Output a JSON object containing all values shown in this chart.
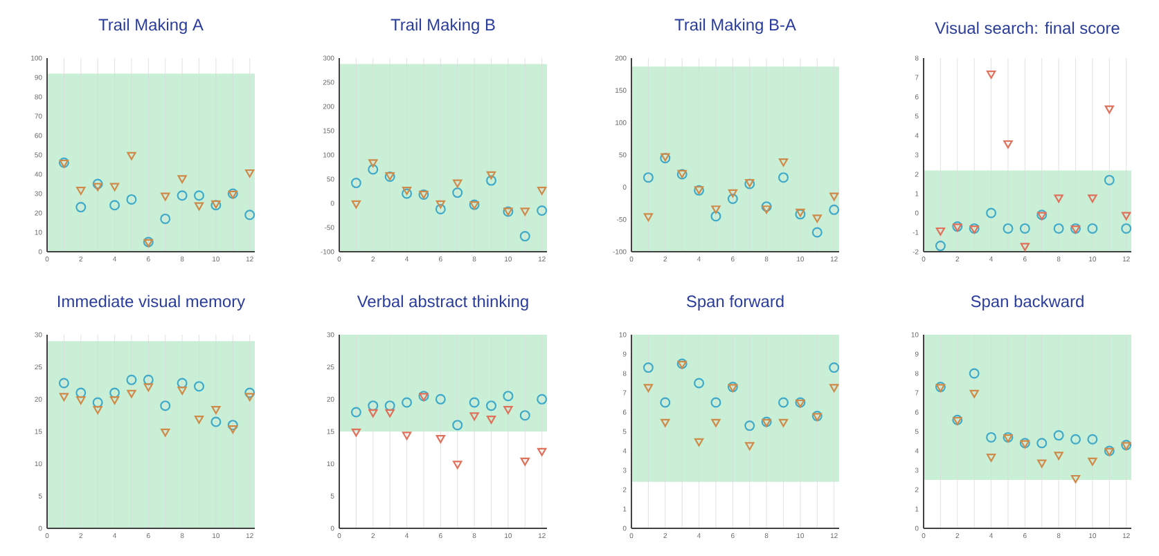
{
  "chart_data": [
    {
      "type": "scatter",
      "title": "Trail Making A",
      "xlim": [
        0,
        12.3
      ],
      "ylim": [
        0,
        100
      ],
      "grid": "x",
      "xticks": [
        0,
        {
          "value": 1,
          "label": null
        },
        2,
        {
          "value": 3,
          "label": null
        },
        4,
        {
          "value": 5,
          "label": null
        },
        6,
        {
          "value": 7,
          "label": null
        },
        8,
        {
          "value": 9,
          "label": null
        },
        10,
        {
          "value": 11,
          "label": null
        },
        12
      ],
      "yticks": [
        0,
        10,
        20,
        30,
        40,
        50,
        60,
        70,
        80,
        90,
        100
      ],
      "bands": [
        {
          "axis": "y",
          "from": 0,
          "to": 92,
          "color": "#c9f0d6"
        }
      ],
      "x": [
        1,
        2,
        3,
        4,
        5,
        6,
        7,
        8,
        9,
        10,
        11,
        12
      ],
      "series": [
        {
          "color": "#3fa9c9",
          "marker": "circle",
          "values": [
            46,
            23,
            35,
            24,
            27,
            5,
            17,
            29,
            29,
            24,
            30,
            19
          ]
        },
        {
          "color": "#cf8a4a",
          "marker": "triangle",
          "values": [
            46,
            32,
            34,
            34,
            50,
            5,
            29,
            38,
            24,
            25,
            30,
            41
          ]
        }
      ]
    },
    {
      "type": "scatter",
      "title": "Trail Making B",
      "xlim": [
        0,
        12.3
      ],
      "ylim": [
        -100,
        300
      ],
      "grid": "x",
      "xticks": [
        0,
        {
          "value": 1,
          "label": null
        },
        2,
        {
          "value": 3,
          "label": null
        },
        4,
        {
          "value": 5,
          "label": null
        },
        6,
        {
          "value": 7,
          "label": null
        },
        8,
        {
          "value": 9,
          "label": null
        },
        10,
        {
          "value": 11,
          "label": null
        },
        12
      ],
      "yticks": [
        -100,
        -50,
        0,
        50,
        100,
        150,
        200,
        250,
        300
      ],
      "bands": [
        {
          "axis": "y",
          "from": -100,
          "to": 288,
          "color": "#c9f0d6"
        }
      ],
      "x": [
        1,
        2,
        3,
        4,
        5,
        6,
        7,
        8,
        9,
        10,
        11,
        12
      ],
      "series": [
        {
          "color": "#3fa9c9",
          "marker": "circle",
          "values": [
            42,
            70,
            55,
            20,
            18,
            -12,
            22,
            -3,
            47,
            -17,
            -68,
            -15
          ]
        },
        {
          "color": "#cf8a4a",
          "marker": "triangle",
          "values": [
            0,
            85,
            58,
            28,
            20,
            0,
            43,
            -2,
            60,
            -15,
            -15,
            28
          ]
        }
      ]
    },
    {
      "type": "scatter",
      "title": "Trail Making B-A",
      "xlim": [
        0,
        12.3
      ],
      "ylim": [
        -100,
        200
      ],
      "grid": "x",
      "xticks": [
        0,
        {
          "value": 1,
          "label": null
        },
        2,
        {
          "value": 3,
          "label": null
        },
        4,
        {
          "value": 5,
          "label": null
        },
        6,
        {
          "value": 7,
          "label": null
        },
        8,
        {
          "value": 9,
          "label": null
        },
        10,
        {
          "value": 11,
          "label": null
        },
        12
      ],
      "yticks": [
        -100,
        -50,
        0,
        50,
        100,
        150,
        200
      ],
      "bands": [
        {
          "axis": "y",
          "from": -100,
          "to": 187,
          "color": "#c9f0d6"
        }
      ],
      "x": [
        1,
        2,
        3,
        4,
        5,
        6,
        7,
        8,
        9,
        10,
        11,
        12
      ],
      "series": [
        {
          "color": "#3fa9c9",
          "marker": "circle",
          "values": [
            15,
            45,
            20,
            -5,
            -45,
            -18,
            5,
            -30,
            15,
            -42,
            -70,
            -35
          ]
        },
        {
          "color": "#cf8a4a",
          "marker": "triangle",
          "values": [
            -45,
            48,
            22,
            -3,
            -33,
            -8,
            8,
            -33,
            40,
            -38,
            -47,
            -13
          ]
        }
      ]
    },
    {
      "type": "scatter",
      "title": "Visual search: final score",
      "xlim": [
        0,
        12.3
      ],
      "ylim": [
        -2,
        8
      ],
      "grid": "x",
      "xticks": [
        0,
        {
          "value": 1,
          "label": null
        },
        2,
        {
          "value": 3,
          "label": null
        },
        4,
        {
          "value": 5,
          "label": null
        },
        6,
        {
          "value": 7,
          "label": null
        },
        8,
        {
          "value": 9,
          "label": null
        },
        10,
        {
          "value": 11,
          "label": null
        },
        12
      ],
      "yticks": [
        -2,
        -1,
        0,
        1,
        2,
        3,
        4,
        5,
        6,
        7,
        8
      ],
      "bands": [
        {
          "axis": "y",
          "from": -2,
          "to": 2.2,
          "color": "#c9f0d6"
        }
      ],
      "x": [
        1,
        2,
        3,
        4,
        5,
        6,
        7,
        8,
        9,
        10,
        11,
        12
      ],
      "series": [
        {
          "color": "#3fa9c9",
          "marker": "circle",
          "values": [
            -1.7,
            -0.7,
            -0.8,
            0,
            -0.8,
            -0.8,
            -0.1,
            -0.8,
            -0.8,
            -0.8,
            1.7,
            -0.8
          ]
        },
        {
          "color": "#e0705a",
          "marker": "triangle",
          "values": [
            -0.9,
            -0.7,
            -0.8,
            7.2,
            3.6,
            -1.7,
            -0.1,
            0.8,
            -0.8,
            0.8,
            5.4,
            -0.1
          ]
        }
      ]
    },
    {
      "type": "scatter",
      "title": "Immediate visual memory",
      "xlim": [
        0,
        12.3
      ],
      "ylim": [
        0,
        30
      ],
      "grid": "x",
      "xticks": [
        0,
        {
          "value": 1,
          "label": null
        },
        2,
        {
          "value": 3,
          "label": null
        },
        4,
        {
          "value": 5,
          "label": null
        },
        6,
        {
          "value": 7,
          "label": null
        },
        8,
        {
          "value": 9,
          "label": null
        },
        10,
        {
          "value": 11,
          "label": null
        },
        12
      ],
      "yticks": [
        0,
        5,
        10,
        15,
        20,
        25,
        30
      ],
      "bands": [
        {
          "axis": "y",
          "from": 0,
          "to": 29,
          "color": "#c9f0d6"
        }
      ],
      "x": [
        1,
        2,
        3,
        4,
        5,
        6,
        7,
        8,
        9,
        10,
        11,
        12
      ],
      "series": [
        {
          "color": "#3fa9c9",
          "marker": "circle",
          "values": [
            22.5,
            21,
            19.5,
            21,
            23,
            23,
            19,
            22.5,
            22,
            16.5,
            16,
            21
          ]
        },
        {
          "color": "#cf8a4a",
          "marker": "triangle",
          "values": [
            20.5,
            20,
            18.5,
            20,
            21,
            22,
            15,
            21.5,
            17,
            18.5,
            15.5,
            20.5
          ]
        }
      ]
    },
    {
      "type": "scatter",
      "title": "Verbal abstract thinking",
      "xlim": [
        0,
        12.3
      ],
      "ylim": [
        0,
        30
      ],
      "grid": "x",
      "xticks": [
        0,
        {
          "value": 1,
          "label": null
        },
        2,
        {
          "value": 3,
          "label": null
        },
        4,
        {
          "value": 5,
          "label": null
        },
        6,
        {
          "value": 7,
          "label": null
        },
        8,
        {
          "value": 9,
          "label": null
        },
        10,
        {
          "value": 11,
          "label": null
        },
        12
      ],
      "yticks": [
        0,
        5,
        10,
        15,
        20,
        25,
        30
      ],
      "bands": [
        {
          "axis": "y",
          "from": 15,
          "to": 30,
          "color": "#c9f0d6"
        }
      ],
      "x": [
        1,
        2,
        3,
        4,
        5,
        6,
        7,
        8,
        9,
        10,
        11,
        12
      ],
      "series": [
        {
          "color": "#3fa9c9",
          "marker": "circle",
          "values": [
            18,
            19,
            19,
            19.5,
            20.5,
            20,
            16,
            19.5,
            19,
            20.5,
            17.5,
            20
          ]
        },
        {
          "color": "#e0705a",
          "marker": "triangle",
          "values": [
            15,
            18,
            18,
            14.5,
            20.5,
            14,
            10,
            17.5,
            17,
            18.5,
            10.5,
            12
          ]
        }
      ]
    },
    {
      "type": "scatter",
      "title": "Span forward",
      "xlim": [
        0,
        12.3
      ],
      "ylim": [
        0,
        10
      ],
      "grid": "x",
      "xticks": [
        0,
        {
          "value": 1,
          "label": null
        },
        2,
        {
          "value": 3,
          "label": null
        },
        4,
        {
          "value": 5,
          "label": null
        },
        6,
        {
          "value": 7,
          "label": null
        },
        8,
        {
          "value": 9,
          "label": null
        },
        10,
        {
          "value": 11,
          "label": null
        },
        12
      ],
      "yticks": [
        0,
        1,
        2,
        3,
        4,
        5,
        6,
        7,
        8,
        9,
        10
      ],
      "bands": [
        {
          "axis": "y",
          "from": 2.4,
          "to": 10,
          "color": "#c9f0d6"
        }
      ],
      "x": [
        1,
        2,
        3,
        4,
        5,
        6,
        7,
        8,
        9,
        10,
        11,
        12
      ],
      "series": [
        {
          "color": "#3fa9c9",
          "marker": "circle",
          "values": [
            8.3,
            6.5,
            8.5,
            7.5,
            6.5,
            7.3,
            5.3,
            5.5,
            6.5,
            6.5,
            5.8,
            8.3
          ]
        },
        {
          "color": "#cf8a4a",
          "marker": "triangle",
          "values": [
            7.3,
            5.5,
            8.5,
            4.5,
            5.5,
            7.3,
            4.3,
            5.5,
            5.5,
            6.5,
            5.8,
            7.3
          ]
        }
      ]
    },
    {
      "type": "scatter",
      "title": "Span backward",
      "xlim": [
        0,
        12.3
      ],
      "ylim": [
        0,
        10
      ],
      "grid": "x",
      "xticks": [
        0,
        {
          "value": 1,
          "label": null
        },
        2,
        {
          "value": 3,
          "label": null
        },
        4,
        {
          "value": 5,
          "label": null
        },
        6,
        {
          "value": 7,
          "label": null
        },
        8,
        {
          "value": 9,
          "label": null
        },
        10,
        {
          "value": 11,
          "label": null
        },
        12
      ],
      "yticks": [
        0,
        1,
        2,
        3,
        4,
        5,
        6,
        7,
        8,
        9,
        10
      ],
      "bands": [
        {
          "axis": "y",
          "from": 2.5,
          "to": 10,
          "color": "#c9f0d6"
        }
      ],
      "x": [
        1,
        2,
        3,
        4,
        5,
        6,
        7,
        8,
        9,
        10,
        11,
        12
      ],
      "series": [
        {
          "color": "#3fa9c9",
          "marker": "circle",
          "values": [
            7.3,
            5.6,
            8,
            4.7,
            4.7,
            4.4,
            4.4,
            4.8,
            4.6,
            4.6,
            4,
            4.3
          ]
        },
        {
          "color": "#cf8a4a",
          "marker": "triangle",
          "values": [
            7.3,
            5.6,
            7,
            3.7,
            4.7,
            4.4,
            3.4,
            3.8,
            2.6,
            3.5,
            4,
            4.3
          ]
        }
      ]
    }
  ]
}
